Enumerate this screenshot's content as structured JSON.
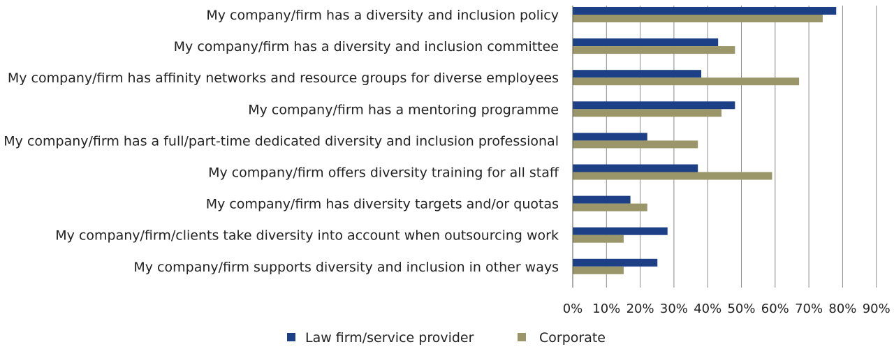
{
  "chart_data": {
    "type": "bar",
    "orientation": "horizontal",
    "categories": [
      "My company/firm has a diversity and inclusion policy",
      "My company/firm has a diversity and inclusion committee",
      "My company/firm has affinity networks and resource groups for diverse employees",
      "My company/firm has a mentoring programme",
      "My company/firm has a full/part-time dedicated diversity and inclusion professional",
      "My company/firm offers diversity training for all staff",
      "My company/firm has diversity targets and/or quotas",
      "My company/firm/clients take diversity into account when outsourcing work",
      "My company/firm supports diversity and inclusion in other ways"
    ],
    "series": [
      {
        "name": "Law firm/service provider",
        "color": "#1c3f85",
        "values": [
          78,
          43,
          38,
          48,
          22,
          37,
          17,
          28,
          25
        ]
      },
      {
        "name": "Corporate",
        "color": "#9b966a",
        "values": [
          74,
          48,
          67,
          44,
          37,
          59,
          22,
          15,
          15
        ]
      }
    ],
    "xlim": [
      0,
      90
    ],
    "x_ticks": [
      "0%",
      "10%",
      "20%",
      "30%",
      "40%",
      "50%",
      "60%",
      "70%",
      "80%",
      "90%"
    ],
    "grid": "vertical",
    "legend": "bottom-center"
  }
}
